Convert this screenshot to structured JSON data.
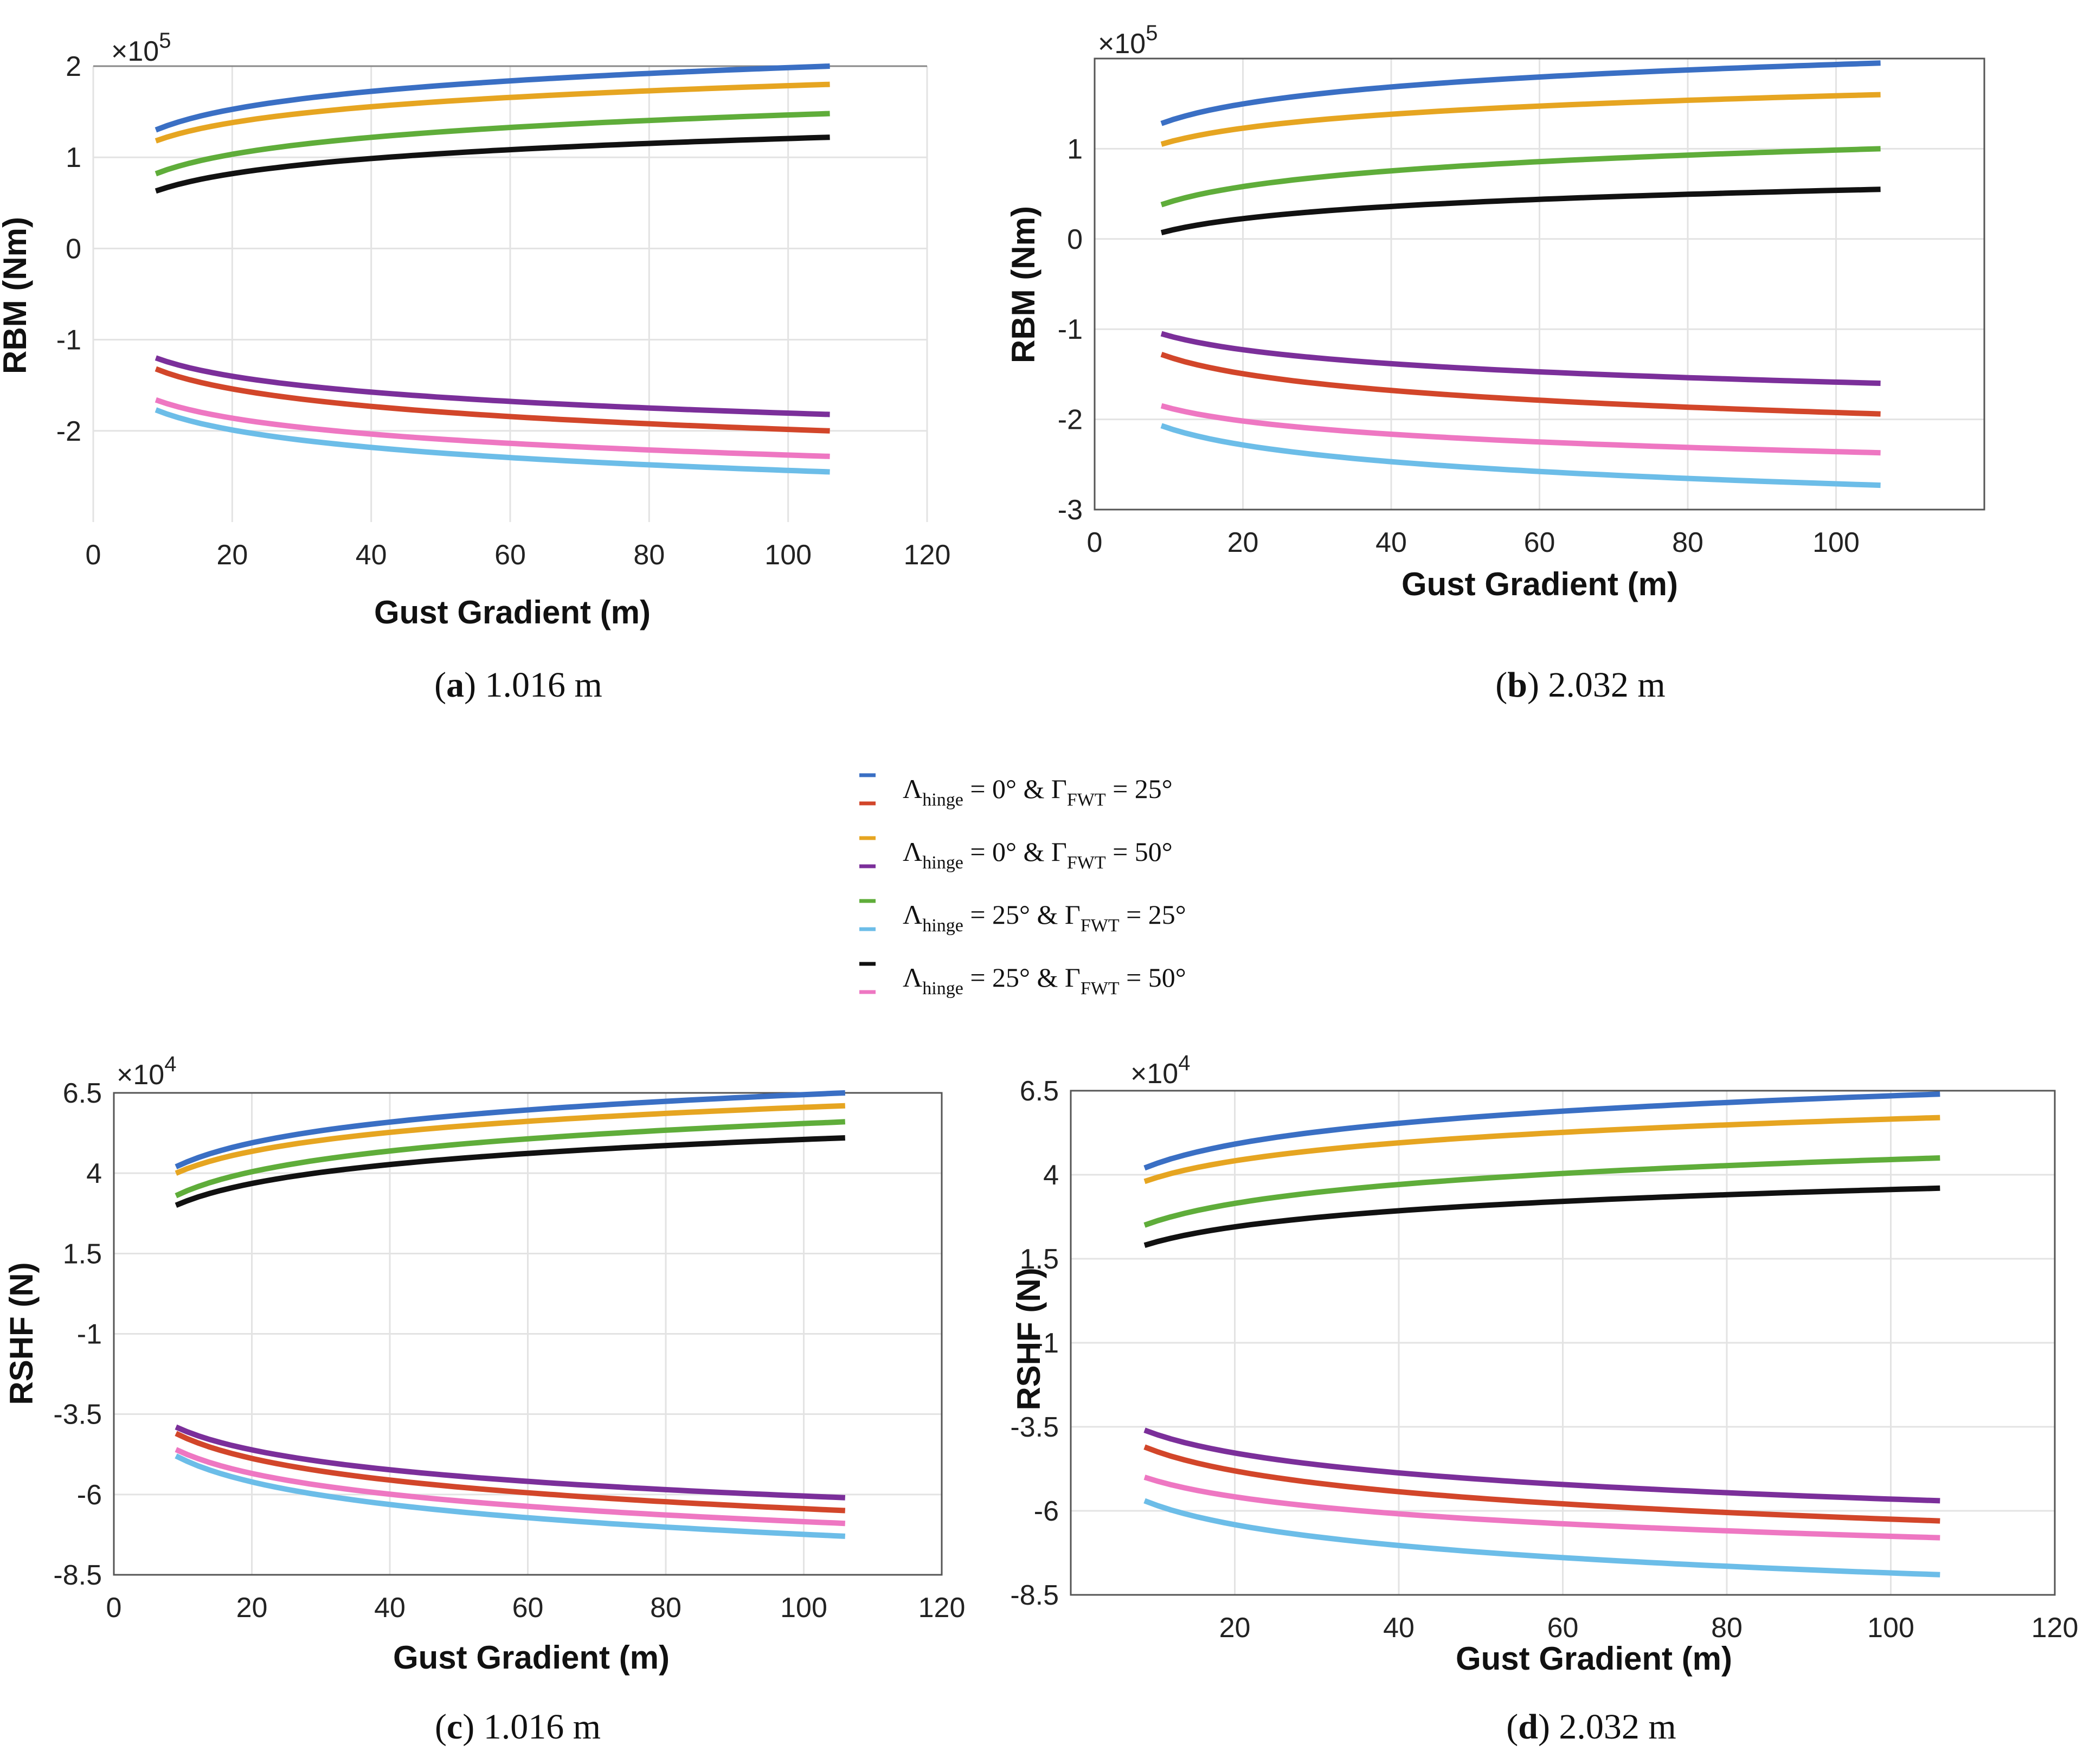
{
  "legend": [
    {
      "name": "Λhinge = 0° & ΓFWT = 25° (positive)",
      "color": "#3a6fc4"
    },
    {
      "name": "Λhinge = 0° & ΓFWT = 25° (negative)",
      "color": "#d2462a"
    },
    {
      "name": "Λhinge = 0° & ΓFWT = 50° (positive)",
      "color": "#e6a521"
    },
    {
      "name": "Λhinge = 0° & ΓFWT = 50° (negative)",
      "color": "#7b2f9a"
    },
    {
      "name": "Λhinge = 25° & ΓFWT = 25° (positive)",
      "color": "#5fad3a"
    },
    {
      "name": "Λhinge = 25° & ΓFWT = 25° (negative)",
      "color": "#6cbde8"
    },
    {
      "name": "Λhinge = 25° & ΓFWT = 50° (positive)",
      "color": "#111111"
    },
    {
      "name": "Λhinge = 25° & ΓFWT = 50° (negative)",
      "color": "#ee77c2"
    }
  ],
  "legend_text": [
    {
      "lambda": "Λ",
      "lsub": "hinge",
      "lval": "= 0°",
      "amp": "&",
      "gamma": "Γ",
      "gsub": "FWT",
      "gval": "= 25°"
    },
    {
      "lambda": "Λ",
      "lsub": "hinge",
      "lval": "= 0°",
      "amp": "&",
      "gamma": "Γ",
      "gsub": "FWT",
      "gval": "= 50°"
    },
    {
      "lambda": "Λ",
      "lsub": "hinge",
      "lval": "= 25°",
      "amp": "&",
      "gamma": "Γ",
      "gsub": "FWT",
      "gval": "= 25°"
    },
    {
      "lambda": "Λ",
      "lsub": "hinge",
      "lval": "= 25°",
      "amp": "&",
      "gamma": "Γ",
      "gsub": "FWT",
      "gval": "= 50°"
    }
  ],
  "chart_data": [
    {
      "id": "a",
      "type": "line",
      "caption_letter": "a",
      "caption_text": " 1.016 m",
      "title": "",
      "xlabel": "Gust Gradient (m)",
      "ylabel": "RBM (Nm)",
      "multiplier": "×10",
      "multiplier_exp": "5",
      "xlim": [
        0,
        120
      ],
      "ylim": [
        -3,
        2
      ],
      "xticks": [
        0,
        20,
        40,
        60,
        80,
        100,
        120
      ],
      "xtick_labels": [
        "0",
        "20",
        "40",
        "60",
        "80",
        "100",
        "120"
      ],
      "yticks": [
        2,
        1,
        0,
        -1,
        -2
      ],
      "ytick_labels": [
        "2",
        "1",
        "0",
        "-1",
        "-2"
      ],
      "grid": true,
      "x": [
        9,
        106
      ],
      "series": [
        {
          "name": "Λhinge = 0° & ΓFWT = 25° (positive)",
          "color": "#3a6fc4",
          "start": 1.3,
          "end": 2.0
        },
        {
          "name": "Λhinge = 0° & ΓFWT = 50° (positive)",
          "color": "#e6a521",
          "start": 1.18,
          "end": 1.8
        },
        {
          "name": "Λhinge = 25° & ΓFWT = 25° (positive)",
          "color": "#5fad3a",
          "start": 0.82,
          "end": 1.48
        },
        {
          "name": "Λhinge = 25° & ΓFWT = 50° (positive)",
          "color": "#111111",
          "start": 0.63,
          "end": 1.22
        },
        {
          "name": "Λhinge = 0° & ΓFWT = 50° (negative)",
          "color": "#7b2f9a",
          "start": -1.2,
          "end": -1.82
        },
        {
          "name": "Λhinge = 0° & ΓFWT = 25° (negative)",
          "color": "#d2462a",
          "start": -1.32,
          "end": -2.0
        },
        {
          "name": "Λhinge = 25° & ΓFWT = 50° (negative)",
          "color": "#ee77c2",
          "start": -1.66,
          "end": -2.28
        },
        {
          "name": "Λhinge = 25° & ΓFWT = 25° (negative)",
          "color": "#6cbde8",
          "start": -1.77,
          "end": -2.45
        }
      ]
    },
    {
      "id": "b",
      "type": "line",
      "caption_letter": "b",
      "caption_text": " 2.032 m",
      "title": "",
      "xlabel": "Gust Gradient (m)",
      "ylabel": "RBM (Nm)",
      "multiplier": "×10",
      "multiplier_exp": "5",
      "xlim": [
        0,
        120
      ],
      "ylim": [
        -3,
        2
      ],
      "xticks": [
        0,
        20,
        40,
        60,
        80,
        100
      ],
      "xtick_labels": [
        "0",
        "20",
        "40",
        "60",
        "80",
        "100"
      ],
      "yticks": [
        1,
        0,
        -1,
        -2,
        -3
      ],
      "ytick_labels": [
        "1",
        "0",
        "-1",
        "-2",
        "-3"
      ],
      "grid": true,
      "x": [
        9,
        106
      ],
      "series": [
        {
          "name": "Λhinge = 0° & ΓFWT = 25° (positive)",
          "color": "#3a6fc4",
          "start": 1.28,
          "end": 1.95
        },
        {
          "name": "Λhinge = 0° & ΓFWT = 50° (positive)",
          "color": "#e6a521",
          "start": 1.05,
          "end": 1.6
        },
        {
          "name": "Λhinge = 25° & ΓFWT = 25° (positive)",
          "color": "#5fad3a",
          "start": 0.38,
          "end": 1.0
        },
        {
          "name": "Λhinge = 25° & ΓFWT = 50° (positive)",
          "color": "#111111",
          "start": 0.07,
          "end": 0.55
        },
        {
          "name": "Λhinge = 0° & ΓFWT = 50° (negative)",
          "color": "#7b2f9a",
          "start": -1.05,
          "end": -1.6
        },
        {
          "name": "Λhinge = 0° & ΓFWT = 25° (negative)",
          "color": "#d2462a",
          "start": -1.28,
          "end": -1.94
        },
        {
          "name": "Λhinge = 25° & ΓFWT = 50° (negative)",
          "color": "#ee77c2",
          "start": -1.85,
          "end": -2.37
        },
        {
          "name": "Λhinge = 25° & ΓFWT = 25° (negative)",
          "color": "#6cbde8",
          "start": -2.07,
          "end": -2.73
        }
      ]
    },
    {
      "id": "c",
      "type": "line",
      "caption_letter": "c",
      "caption_text": " 1.016 m",
      "title": "",
      "xlabel": "Gust Gradient (m)",
      "ylabel": "RSHF (N)",
      "multiplier": "×10",
      "multiplier_exp": "4",
      "xlim": [
        0,
        120
      ],
      "ylim": [
        -8.5,
        6.5
      ],
      "xticks": [
        0,
        20,
        40,
        60,
        80,
        100,
        120
      ],
      "xtick_labels": [
        "0",
        "20",
        "40",
        "60",
        "80",
        "100",
        "120"
      ],
      "yticks": [
        6.5,
        4,
        1.5,
        -1,
        -3.5,
        -6,
        -8.5
      ],
      "ytick_labels": [
        "6.5",
        "4",
        "1.5",
        "-1",
        "-3.5",
        "-6",
        "-8.5"
      ],
      "grid": true,
      "x": [
        9,
        106
      ],
      "series": [
        {
          "name": "Λhinge = 0° & ΓFWT = 25° (positive)",
          "color": "#3a6fc4",
          "start": 4.2,
          "end": 6.5
        },
        {
          "name": "Λhinge = 0° & ΓFWT = 50° (positive)",
          "color": "#e6a521",
          "start": 4.0,
          "end": 6.1
        },
        {
          "name": "Λhinge = 25° & ΓFWT = 25° (positive)",
          "color": "#5fad3a",
          "start": 3.3,
          "end": 5.6
        },
        {
          "name": "Λhinge = 25° & ΓFWT = 50° (positive)",
          "color": "#111111",
          "start": 3.0,
          "end": 5.1
        },
        {
          "name": "Λhinge = 0° & ΓFWT = 50° (negative)",
          "color": "#7b2f9a",
          "start": -3.9,
          "end": -6.1
        },
        {
          "name": "Λhinge = 0° & ΓFWT = 25° (negative)",
          "color": "#d2462a",
          "start": -4.1,
          "end": -6.5
        },
        {
          "name": "Λhinge = 25° & ΓFWT = 50° (negative)",
          "color": "#ee77c2",
          "start": -4.6,
          "end": -6.9
        },
        {
          "name": "Λhinge = 25° & ΓFWT = 25° (negative)",
          "color": "#6cbde8",
          "start": -4.8,
          "end": -7.3
        }
      ]
    },
    {
      "id": "d",
      "type": "line",
      "caption_letter": "d",
      "caption_text": " 2.032 m",
      "title": "",
      "xlabel": "Gust Gradient (m)",
      "ylabel": "RSHF (N)",
      "multiplier": "×10",
      "multiplier_exp": "4",
      "xlim": [
        0,
        120
      ],
      "ylim": [
        -8.5,
        6.5
      ],
      "xticks": [
        20,
        40,
        60,
        80,
        100,
        120
      ],
      "xtick_labels": [
        "20",
        "40",
        "60",
        "80",
        "100",
        "120"
      ],
      "yticks": [
        6.5,
        4,
        1.5,
        -1,
        -3.5,
        -6,
        -8.5
      ],
      "ytick_labels": [
        "6.5",
        "4",
        "1.5",
        "-1",
        "-3.5",
        "-6",
        "-8.5"
      ],
      "grid": true,
      "x": [
        9,
        106
      ],
      "series": [
        {
          "name": "Λhinge = 0° & ΓFWT = 25° (positive)",
          "color": "#3a6fc4",
          "start": 4.2,
          "end": 6.4
        },
        {
          "name": "Λhinge = 0° & ΓFWT = 50° (positive)",
          "color": "#e6a521",
          "start": 3.8,
          "end": 5.7
        },
        {
          "name": "Λhinge = 25° & ΓFWT = 25° (positive)",
          "color": "#5fad3a",
          "start": 2.5,
          "end": 4.5
        },
        {
          "name": "Λhinge = 25° & ΓFWT = 50° (positive)",
          "color": "#111111",
          "start": 1.9,
          "end": 3.6
        },
        {
          "name": "Λhinge = 0° & ΓFWT = 50° (negative)",
          "color": "#7b2f9a",
          "start": -3.6,
          "end": -5.7
        },
        {
          "name": "Λhinge = 0° & ΓFWT = 25° (negative)",
          "color": "#d2462a",
          "start": -4.1,
          "end": -6.3
        },
        {
          "name": "Λhinge = 25° & ΓFWT = 50° (negative)",
          "color": "#ee77c2",
          "start": -5.0,
          "end": -6.8
        },
        {
          "name": "Λhinge = 25° & ΓFWT = 25° (negative)",
          "color": "#6cbde8",
          "start": -5.7,
          "end": -7.9
        }
      ]
    }
  ]
}
